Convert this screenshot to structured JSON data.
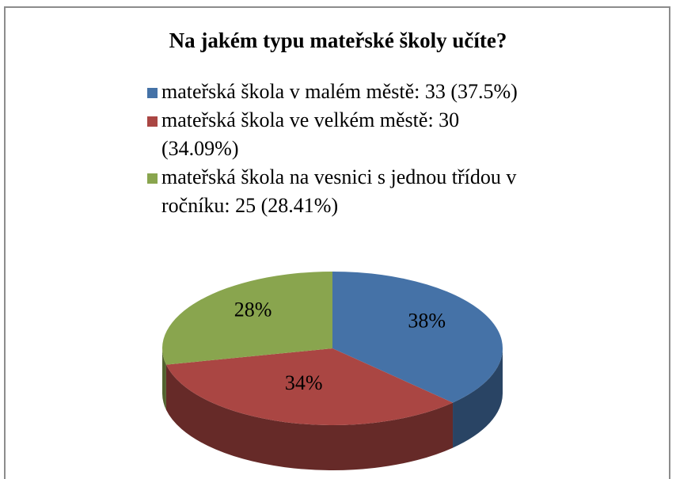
{
  "chart_data": {
    "type": "pie",
    "title": "Na jakém typu mateřské školy učíte?",
    "categories": [
      "mateřská škola v malém městě: 33 (37.5%)",
      "mateřská škola ve velkém městě: 30 (34.09%)",
      "mateřská škola na vesnici s jednou třídou v ročníku: 25 (28.41%)"
    ],
    "values": [
      37.5,
      34.09,
      28.41
    ],
    "value_labels": [
      "38%",
      "34%",
      "28%"
    ],
    "colors": [
      "#4572a7",
      "#aa4643",
      "#89a54e"
    ]
  }
}
